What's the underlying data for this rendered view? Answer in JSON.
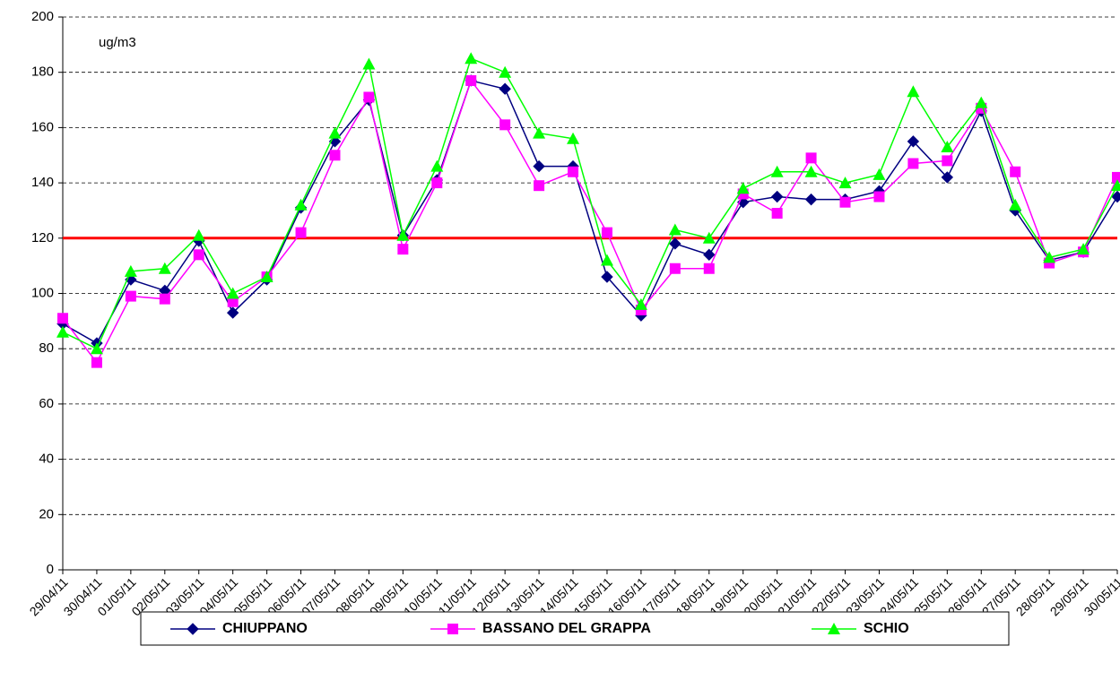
{
  "chart_data": {
    "type": "line",
    "annotation": "ug/m3",
    "categories": [
      "29/04/11",
      "30/04/11",
      "01/05/11",
      "02/05/11",
      "03/05/11",
      "04/05/11",
      "05/05/11",
      "06/05/11",
      "07/05/11",
      "08/05/11",
      "09/05/11",
      "10/05/11",
      "11/05/11",
      "12/05/11",
      "13/05/11",
      "14/05/11",
      "15/05/11",
      "16/05/11",
      "17/05/11",
      "18/05/11",
      "19/05/11",
      "20/05/11",
      "21/05/11",
      "22/05/11",
      "23/05/11",
      "24/05/11",
      "25/05/11",
      "26/05/11",
      "27/05/11",
      "28/05/11",
      "29/05/11",
      "30/05/11"
    ],
    "series": [
      {
        "name": "CHIUPPANO",
        "color": "#000080",
        "marker": "diamond",
        "values": [
          89,
          82,
          105,
          101,
          119,
          93,
          105,
          131,
          155,
          170,
          121,
          141,
          177,
          174,
          146,
          146,
          106,
          92,
          118,
          114,
          133,
          135,
          134,
          134,
          137,
          155,
          142,
          166,
          130,
          112,
          115,
          135
        ]
      },
      {
        "name": "BASSANO DEL GRAPPA",
        "color": "#ff00ff",
        "marker": "square",
        "values": [
          91,
          75,
          99,
          98,
          114,
          97,
          106,
          122,
          150,
          171,
          116,
          140,
          177,
          161,
          139,
          144,
          122,
          94,
          109,
          109,
          136,
          129,
          149,
          133,
          135,
          147,
          148,
          167,
          144,
          111,
          115,
          142
        ]
      },
      {
        "name": "SCHIO",
        "color": "#00ff00",
        "marker": "triangle",
        "values": [
          86,
          80,
          108,
          109,
          121,
          100,
          106,
          132,
          158,
          183,
          121,
          146,
          185,
          180,
          158,
          156,
          112,
          96,
          123,
          120,
          138,
          144,
          144,
          140,
          143,
          173,
          153,
          169,
          132,
          113,
          116,
          139
        ]
      }
    ],
    "threshold": 120,
    "threshold_color": "#ff0000",
    "ylim": [
      0,
      200
    ],
    "yticks": [
      0,
      20,
      40,
      60,
      80,
      100,
      120,
      140,
      160,
      180,
      200
    ],
    "grid": true,
    "legend": "bottom"
  }
}
